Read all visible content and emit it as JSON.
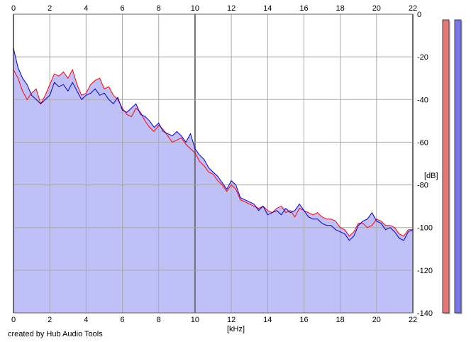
{
  "credit": "created by Hub Audio Tools",
  "chart_data": {
    "type": "area",
    "xlabel": "[kHz]",
    "ylabel": "[dB]",
    "xlim": [
      0,
      22
    ],
    "ylim": [
      -140,
      0
    ],
    "grid": true,
    "x_ticks": [
      "0",
      "2",
      "4",
      "6",
      "8",
      "10",
      "12",
      "14",
      "16",
      "18",
      "20",
      "22"
    ],
    "y_ticks": [
      "0",
      "-20",
      "-40",
      "-60",
      "-80",
      "-100",
      "-120",
      "-140"
    ],
    "series": [
      {
        "color": "#ff0000",
        "x": [
          0.0,
          0.25,
          0.5,
          0.75,
          1.0,
          1.25,
          1.5,
          1.75,
          2.0,
          2.25,
          2.5,
          2.75,
          3.0,
          3.25,
          3.5,
          3.75,
          4.0,
          4.25,
          4.5,
          4.75,
          5.0,
          5.25,
          5.5,
          5.75,
          6.0,
          6.25,
          6.5,
          6.75,
          7.0,
          7.25,
          7.5,
          7.75,
          8.0,
          8.25,
          8.5,
          8.75,
          9.0,
          9.25,
          9.5,
          9.75,
          10.0,
          10.25,
          10.5,
          10.75,
          11.0,
          11.25,
          11.5,
          11.75,
          12.0,
          12.25,
          12.5,
          12.75,
          13.0,
          13.25,
          13.5,
          13.75,
          14.0,
          14.25,
          14.5,
          14.75,
          15.0,
          15.25,
          15.5,
          15.75,
          16.0,
          16.25,
          16.5,
          16.75,
          17.0,
          17.25,
          17.5,
          17.75,
          18.0,
          18.25,
          18.5,
          18.75,
          19.0,
          19.25,
          19.5,
          19.75,
          20.0,
          20.25,
          20.5,
          20.75,
          21.0,
          21.25,
          21.5,
          21.75,
          22.0
        ],
        "y": [
          -26,
          -30,
          -36,
          -40,
          -37,
          -35,
          -42,
          -38,
          -33,
          -28,
          -29,
          -27,
          -30,
          -26,
          -33,
          -38,
          -37,
          -33,
          -31,
          -30,
          -35,
          -34,
          -38,
          -40,
          -44,
          -47,
          -48,
          -44,
          -46,
          -50,
          -53,
          -55,
          -52,
          -54,
          -57,
          -60,
          -59,
          -58,
          -61,
          -63,
          -65,
          -69,
          -71,
          -74,
          -75,
          -78,
          -80,
          -83,
          -80,
          -82,
          -87,
          -88,
          -89,
          -90,
          -91,
          -90,
          -92,
          -93,
          -91,
          -90,
          -93,
          -92,
          -95,
          -91,
          -92,
          -93,
          -94,
          -93,
          -95,
          -96,
          -96,
          -97,
          -100,
          -101,
          -104,
          -102,
          -98,
          -98,
          -100,
          -99,
          -96,
          -97,
          -99,
          -99,
          -100,
          -103,
          -104,
          -101,
          -101
        ]
      },
      {
        "color": "#0000cc",
        "x": [
          0.0,
          0.25,
          0.5,
          0.75,
          1.0,
          1.25,
          1.5,
          1.75,
          2.0,
          2.25,
          2.5,
          2.75,
          3.0,
          3.25,
          3.5,
          3.75,
          4.0,
          4.25,
          4.5,
          4.75,
          5.0,
          5.25,
          5.5,
          5.75,
          6.0,
          6.25,
          6.5,
          6.75,
          7.0,
          7.25,
          7.5,
          7.75,
          8.0,
          8.25,
          8.5,
          8.75,
          9.0,
          9.25,
          9.5,
          9.75,
          10.0,
          10.25,
          10.5,
          10.75,
          11.0,
          11.25,
          11.5,
          11.75,
          12.0,
          12.25,
          12.5,
          12.75,
          13.0,
          13.25,
          13.5,
          13.75,
          14.0,
          14.25,
          14.5,
          14.75,
          15.0,
          15.25,
          15.5,
          15.75,
          16.0,
          16.25,
          16.5,
          16.75,
          17.0,
          17.25,
          17.5,
          17.75,
          18.0,
          18.25,
          18.5,
          18.75,
          19.0,
          19.25,
          19.5,
          19.75,
          20.0,
          20.25,
          20.5,
          20.75,
          21.0,
          21.25,
          21.5,
          21.75,
          22.0
        ],
        "y": [
          -16,
          -25,
          -30,
          -33,
          -38,
          -40,
          -42,
          -40,
          -38,
          -32,
          -34,
          -33,
          -36,
          -32,
          -36,
          -40,
          -38,
          -37,
          -35,
          -38,
          -37,
          -40,
          -42,
          -39,
          -45,
          -46,
          -44,
          -42,
          -47,
          -48,
          -50,
          -53,
          -51,
          -55,
          -56,
          -57,
          -55,
          -57,
          -60,
          -56,
          -63,
          -66,
          -68,
          -72,
          -74,
          -76,
          -79,
          -82,
          -78,
          -80,
          -86,
          -87,
          -88,
          -89,
          -92,
          -90,
          -94,
          -93,
          -92,
          -94,
          -91,
          -93,
          -92,
          -89,
          -92,
          -95,
          -96,
          -96,
          -98,
          -99,
          -99,
          -101,
          -102,
          -103,
          -106,
          -104,
          -99,
          -97,
          -96,
          -93,
          -97,
          -98,
          -101,
          -100,
          -102,
          -105,
          -106,
          -102,
          -101
        ]
      }
    ],
    "level_meters": [
      {
        "color": "#e87878",
        "level": 1.0
      },
      {
        "color": "#7878e8",
        "level": 1.0
      }
    ]
  }
}
